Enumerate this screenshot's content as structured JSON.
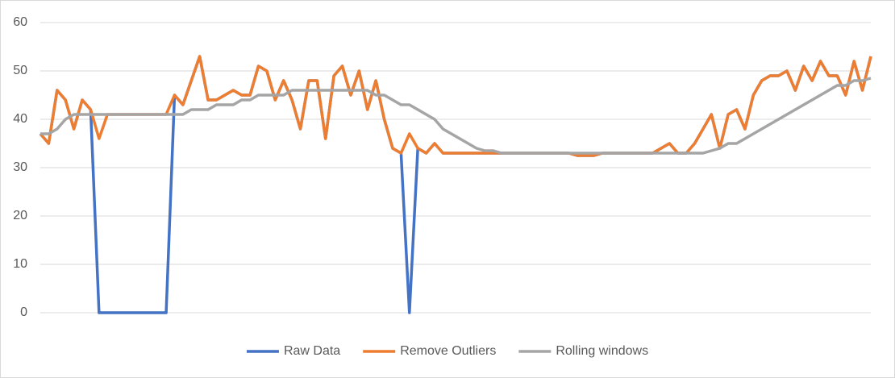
{
  "chart_data": {
    "type": "line",
    "ylim": [
      0,
      60
    ],
    "yticks": [
      0,
      10,
      20,
      30,
      40,
      50,
      60
    ],
    "grid": true,
    "legend": "bottom",
    "series": [
      {
        "name": "Raw Data",
        "color": "#4472c4",
        "values": [
          37,
          35,
          46,
          44,
          38,
          44,
          42,
          0,
          0,
          0,
          0,
          0,
          0,
          0,
          0,
          0,
          45,
          43,
          48,
          53,
          44,
          44,
          45,
          46,
          45,
          45,
          51,
          50,
          44,
          48,
          44,
          38,
          48,
          48,
          36,
          49,
          51,
          45,
          50,
          42,
          48,
          40,
          34,
          33,
          0,
          34,
          33,
          35,
          33,
          33,
          33,
          33,
          33,
          33,
          33,
          33,
          33,
          33,
          33,
          33,
          33,
          33,
          33,
          33,
          32.5,
          32.5,
          32.5,
          33,
          33,
          33,
          33,
          33,
          33,
          33,
          34,
          35,
          33,
          33,
          35,
          38,
          41,
          34,
          41,
          42,
          38,
          45,
          48,
          49,
          49,
          50,
          46,
          51,
          48,
          52,
          49,
          49,
          45,
          52,
          46,
          53
        ]
      },
      {
        "name": "Remove Outliers",
        "color": "#ed7d31",
        "values": [
          37,
          35,
          46,
          44,
          38,
          44,
          42,
          36,
          41,
          41,
          41,
          41,
          41,
          41,
          41,
          41,
          45,
          43,
          48,
          53,
          44,
          44,
          45,
          46,
          45,
          45,
          51,
          50,
          44,
          48,
          44,
          38,
          48,
          48,
          36,
          49,
          51,
          45,
          50,
          42,
          48,
          40,
          34,
          33,
          37,
          34,
          33,
          35,
          33,
          33,
          33,
          33,
          33,
          33,
          33,
          33,
          33,
          33,
          33,
          33,
          33,
          33,
          33,
          33,
          32.5,
          32.5,
          32.5,
          33,
          33,
          33,
          33,
          33,
          33,
          33,
          34,
          35,
          33,
          33,
          35,
          38,
          41,
          34,
          41,
          42,
          38,
          45,
          48,
          49,
          49,
          50,
          46,
          51,
          48,
          52,
          49,
          49,
          45,
          52,
          46,
          53
        ]
      },
      {
        "name": "Rolling windows",
        "color": "#a5a5a5",
        "values": [
          37,
          37,
          38,
          40,
          41,
          41,
          41,
          41,
          41,
          41,
          41,
          41,
          41,
          41,
          41,
          41,
          41,
          41,
          42,
          42,
          42,
          43,
          43,
          43,
          44,
          44,
          45,
          45,
          45,
          45,
          46,
          46,
          46,
          46,
          46,
          46,
          46,
          46,
          46,
          46,
          45,
          45,
          44,
          43,
          43,
          42,
          41,
          40,
          38,
          37,
          36,
          35,
          34,
          33.5,
          33.5,
          33,
          33,
          33,
          33,
          33,
          33,
          33,
          33,
          33,
          33,
          33,
          33,
          33,
          33,
          33,
          33,
          33,
          33,
          33,
          33,
          33,
          33,
          33,
          33,
          33,
          33.5,
          34,
          35,
          35,
          36,
          37,
          38,
          39,
          40,
          41,
          42,
          43,
          44,
          45,
          46,
          47,
          47,
          48,
          48,
          48.5
        ]
      }
    ]
  }
}
